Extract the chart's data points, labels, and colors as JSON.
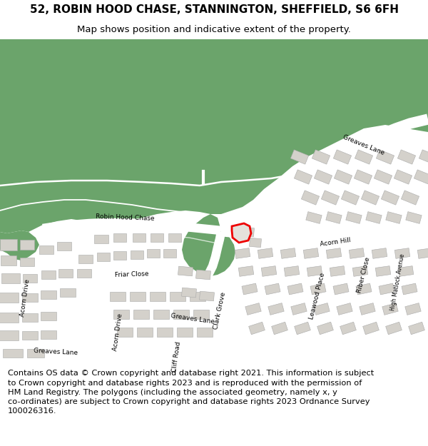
{
  "title": "52, ROBIN HOOD CHASE, STANNINGTON, SHEFFIELD, S6 6FH",
  "subtitle": "Map shows position and indicative extent of the property.",
  "footer": "Contains OS data © Crown copyright and database right 2021. This information is subject to Crown copyright and database rights 2023 and is reproduced with the permission of HM Land Registry. The polygons (including the associated geometry, namely x, y co-ordinates) are subject to Crown copyright and database rights 2023 Ordnance Survey 100026316.",
  "bg_color": "#ffffff",
  "map_bg": "#f2f0ed",
  "green_color": "#6ba46b",
  "building_color": "#d4d1cb",
  "road_color": "#ffffff",
  "highlight_color": "#ee0000",
  "title_fontsize": 11,
  "subtitle_fontsize": 9.5,
  "footer_fontsize": 8.2
}
